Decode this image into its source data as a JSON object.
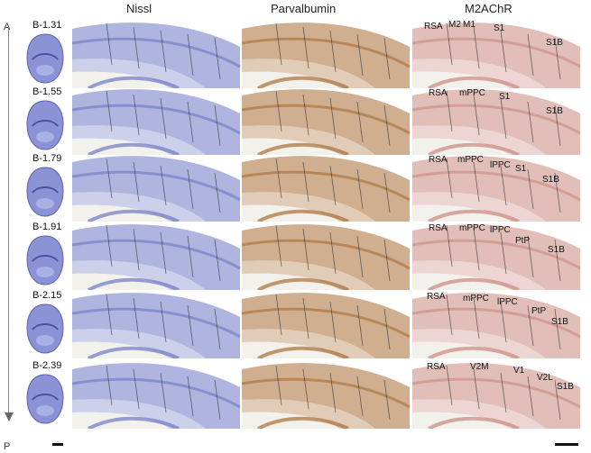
{
  "column_titles": {
    "nissl": "Nissl",
    "parvalbumin": "Parvalbumin",
    "m2achr": "M2AChR"
  },
  "axis": {
    "top": "A",
    "bottom": "P"
  },
  "colors": {
    "nissl": "#6d78c4",
    "parvalbumin": "#a86d34",
    "m2achr": "#c9887e"
  },
  "rows": [
    {
      "bregma": "B-1.31",
      "regions": [
        "RSA",
        "M2",
        "M1",
        "S1",
        "S1B"
      ]
    },
    {
      "bregma": "B-1.55",
      "regions": [
        "RSA",
        "mPPC",
        "S1",
        "S1B"
      ]
    },
    {
      "bregma": "B-1.79",
      "regions": [
        "RSA",
        "mPPC",
        "lPPC",
        "S1",
        "S1B"
      ]
    },
    {
      "bregma": "B-1.91",
      "regions": [
        "RSA",
        "mPPC",
        "lPPC",
        "PtP",
        "S1B"
      ]
    },
    {
      "bregma": "B-2.15",
      "regions": [
        "RSA",
        "mPPC",
        "lPPC",
        "PtP",
        "S1B"
      ]
    },
    {
      "bregma": "B-2.39",
      "regions": [
        "RSA",
        "V2M",
        "V1",
        "V2L",
        "S1B"
      ]
    }
  ]
}
